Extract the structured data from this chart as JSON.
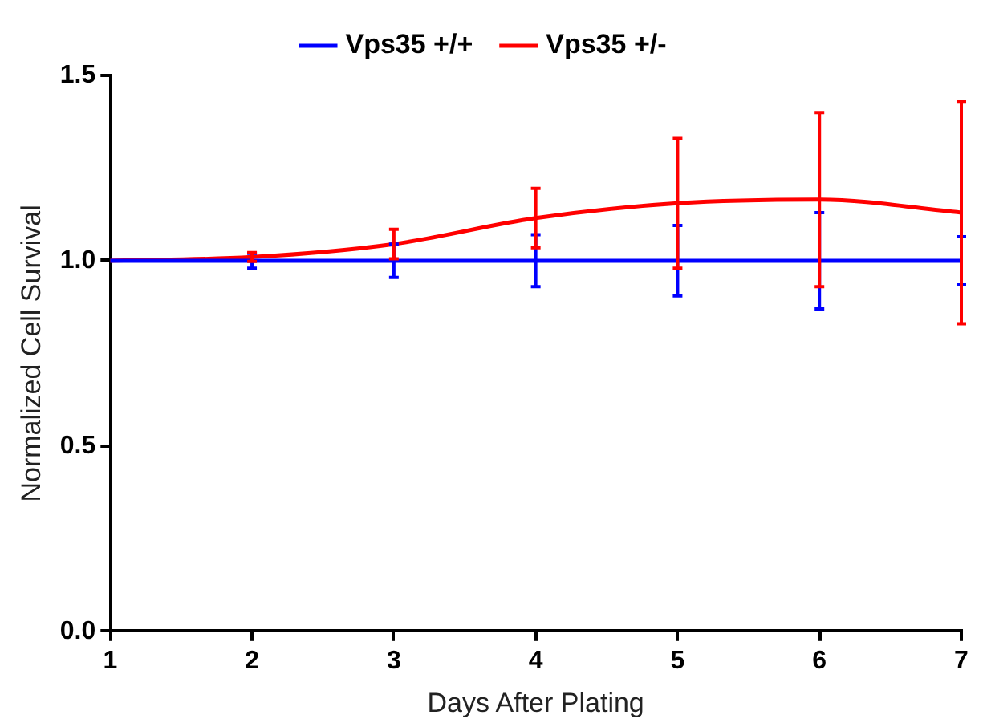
{
  "chart_data": {
    "type": "line",
    "xlabel": "Days After Plating",
    "ylabel": "Normalized Cell Survival",
    "x": [
      1,
      2,
      3,
      4,
      5,
      6,
      7
    ],
    "xlim": [
      1,
      7
    ],
    "xticks": [
      1,
      2,
      3,
      4,
      5,
      6,
      7
    ],
    "ylim": [
      0,
      1.5
    ],
    "yticks": [
      {
        "value": 0,
        "label": "0.0"
      },
      {
        "value": 0.5,
        "label": "0.5"
      },
      {
        "value": 1,
        "label": "1.0"
      },
      {
        "value": 1.5,
        "label": "1.5"
      }
    ],
    "grid": false,
    "legend": "top",
    "line_style": "solid",
    "series": [
      {
        "name": "Vps35 +/+",
        "color": "#0000ff",
        "values": [
          1,
          1,
          1,
          1,
          1,
          1,
          1
        ],
        "errors": [
          null,
          0.02,
          0.045,
          0.07,
          0.095,
          0.13,
          0.065
        ]
      },
      {
        "name": "Vps35 +/-",
        "color": "#ff0000",
        "values": [
          1,
          1.01,
          1.045,
          1.115,
          1.155,
          1.165,
          1.13
        ],
        "errors": [
          null,
          0.012,
          0.04,
          0.08,
          0.175,
          0.235,
          0.3
        ]
      }
    ]
  }
}
